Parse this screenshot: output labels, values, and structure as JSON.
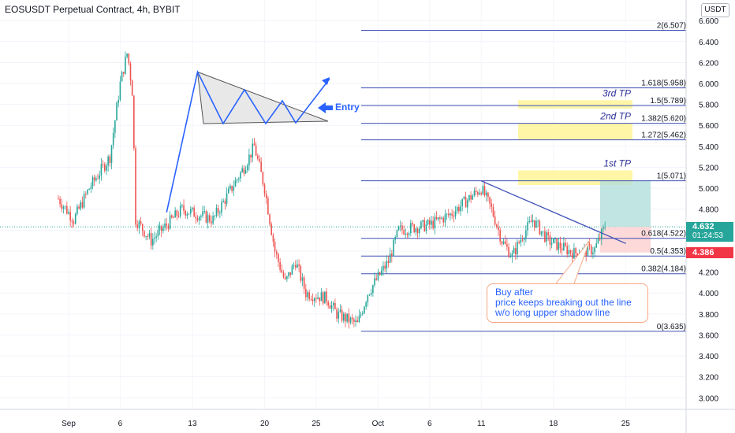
{
  "header": {
    "title": "EOSUSDT Perpetual Contract, 4h, BYBIT",
    "currency": "USDT"
  },
  "price_tags": {
    "last_price": "4.632",
    "countdown": "01:24:53",
    "stop_price": "4.386"
  },
  "annotations": {
    "entry_label": "Entry",
    "note_lines": [
      "Buy after",
      "price keeps breaking out the line",
      "w/o long upper shadow line"
    ],
    "tp_labels": [
      "3rd TP",
      "2nd TP",
      "1st TP"
    ]
  },
  "colors": {
    "up": "#26a69a",
    "down": "#ef5350",
    "drawing": "#2962ff",
    "fib_line": "#3f51b5",
    "tp_zone": "#fff59d",
    "profit_zone": "#b2dfdb",
    "loss_zone": "#fdd5d5",
    "note_border": "#f8a680"
  },
  "chart_data": {
    "type": "candlestick",
    "symbol": "EOSUSDT",
    "timeframe": "4h",
    "y_range": [
      2.8,
      6.7
    ],
    "y_ticks": [
      "6.600",
      "6.400",
      "6.200",
      "6.000",
      "5.800",
      "5.600",
      "5.400",
      "5.200",
      "5.000",
      "4.800",
      "4.600",
      "4.400",
      "4.200",
      "4.000",
      "3.800",
      "3.600",
      "3.400",
      "3.200",
      "3.000"
    ],
    "x_ticks": [
      {
        "label": "Sep",
        "day": 1
      },
      {
        "label": "6",
        "day": 6
      },
      {
        "label": "13",
        "day": 13
      },
      {
        "label": "20",
        "day": 20
      },
      {
        "label": "25",
        "day": 25
      },
      {
        "label": "Oct",
        "day": 31
      },
      {
        "label": "6",
        "day": 36
      },
      {
        "label": "11",
        "day": 41
      },
      {
        "label": "18",
        "day": 48
      },
      {
        "label": "25",
        "day": 55
      }
    ],
    "fib_levels": [
      {
        "label": "2(6.507)",
        "price": 6.507
      },
      {
        "label": "1.618(5.958)",
        "price": 5.958
      },
      {
        "label": "1.5(5.789)",
        "price": 5.789
      },
      {
        "label": "1.382(5.620)",
        "price": 5.62
      },
      {
        "label": "1.272(5.462)",
        "price": 5.462
      },
      {
        "label": "1(5.071)",
        "price": 5.071
      },
      {
        "label": "0.618(4.522)",
        "price": 4.522
      },
      {
        "label": "0.5(4.353)",
        "price": 4.353
      },
      {
        "label": "0.382(4.184)",
        "price": 4.184
      },
      {
        "label": "0(3.635)",
        "price": 3.635
      }
    ],
    "tp_zones": [
      {
        "from": 5.76,
        "to": 5.84
      },
      {
        "from": 5.46,
        "to": 5.62
      },
      {
        "from": 5.03,
        "to": 5.17
      }
    ],
    "trade_position": {
      "entry": 4.632,
      "stop": 4.386,
      "target": 5.071
    },
    "trendline": [
      {
        "day": 41,
        "price": 5.07
      },
      {
        "day": 53.5,
        "price": 4.45
      }
    ],
    "pattern_sketch": [
      {
        "day": 10.5,
        "price": 4.77
      },
      {
        "day": 13.5,
        "price": 6.11
      },
      {
        "day": 25.5,
        "price": 5.64
      }
    ],
    "anchors": [
      {
        "day": 0,
        "price": 4.9
      },
      {
        "day": 1.5,
        "price": 4.7
      },
      {
        "day": 3,
        "price": 5.0
      },
      {
        "day": 5,
        "price": 5.3
      },
      {
        "day": 6,
        "price": 6.0
      },
      {
        "day": 6.7,
        "price": 6.3
      },
      {
        "day": 7.2,
        "price": 5.9
      },
      {
        "day": 7.5,
        "price": 4.7
      },
      {
        "day": 9,
        "price": 4.5
      },
      {
        "day": 12,
        "price": 4.8
      },
      {
        "day": 15,
        "price": 4.7
      },
      {
        "day": 18,
        "price": 5.2
      },
      {
        "day": 19,
        "price": 5.4
      },
      {
        "day": 20,
        "price": 5.0
      },
      {
        "day": 21,
        "price": 4.4
      },
      {
        "day": 22,
        "price": 4.1
      },
      {
        "day": 23,
        "price": 4.3
      },
      {
        "day": 24,
        "price": 4.0
      },
      {
        "day": 26,
        "price": 3.95
      },
      {
        "day": 27,
        "price": 3.8
      },
      {
        "day": 29,
        "price": 3.7
      },
      {
        "day": 30,
        "price": 4.0
      },
      {
        "day": 32,
        "price": 4.3
      },
      {
        "day": 33,
        "price": 4.6
      },
      {
        "day": 36,
        "price": 4.65
      },
      {
        "day": 38,
        "price": 4.75
      },
      {
        "day": 41,
        "price": 5.0
      },
      {
        "day": 42,
        "price": 4.8
      },
      {
        "day": 43,
        "price": 4.5
      },
      {
        "day": 44,
        "price": 4.35
      },
      {
        "day": 45,
        "price": 4.55
      },
      {
        "day": 46,
        "price": 4.7
      },
      {
        "day": 47.5,
        "price": 4.5
      },
      {
        "day": 50,
        "price": 4.38
      },
      {
        "day": 52,
        "price": 4.42
      },
      {
        "day": 53,
        "price": 4.632
      }
    ]
  }
}
